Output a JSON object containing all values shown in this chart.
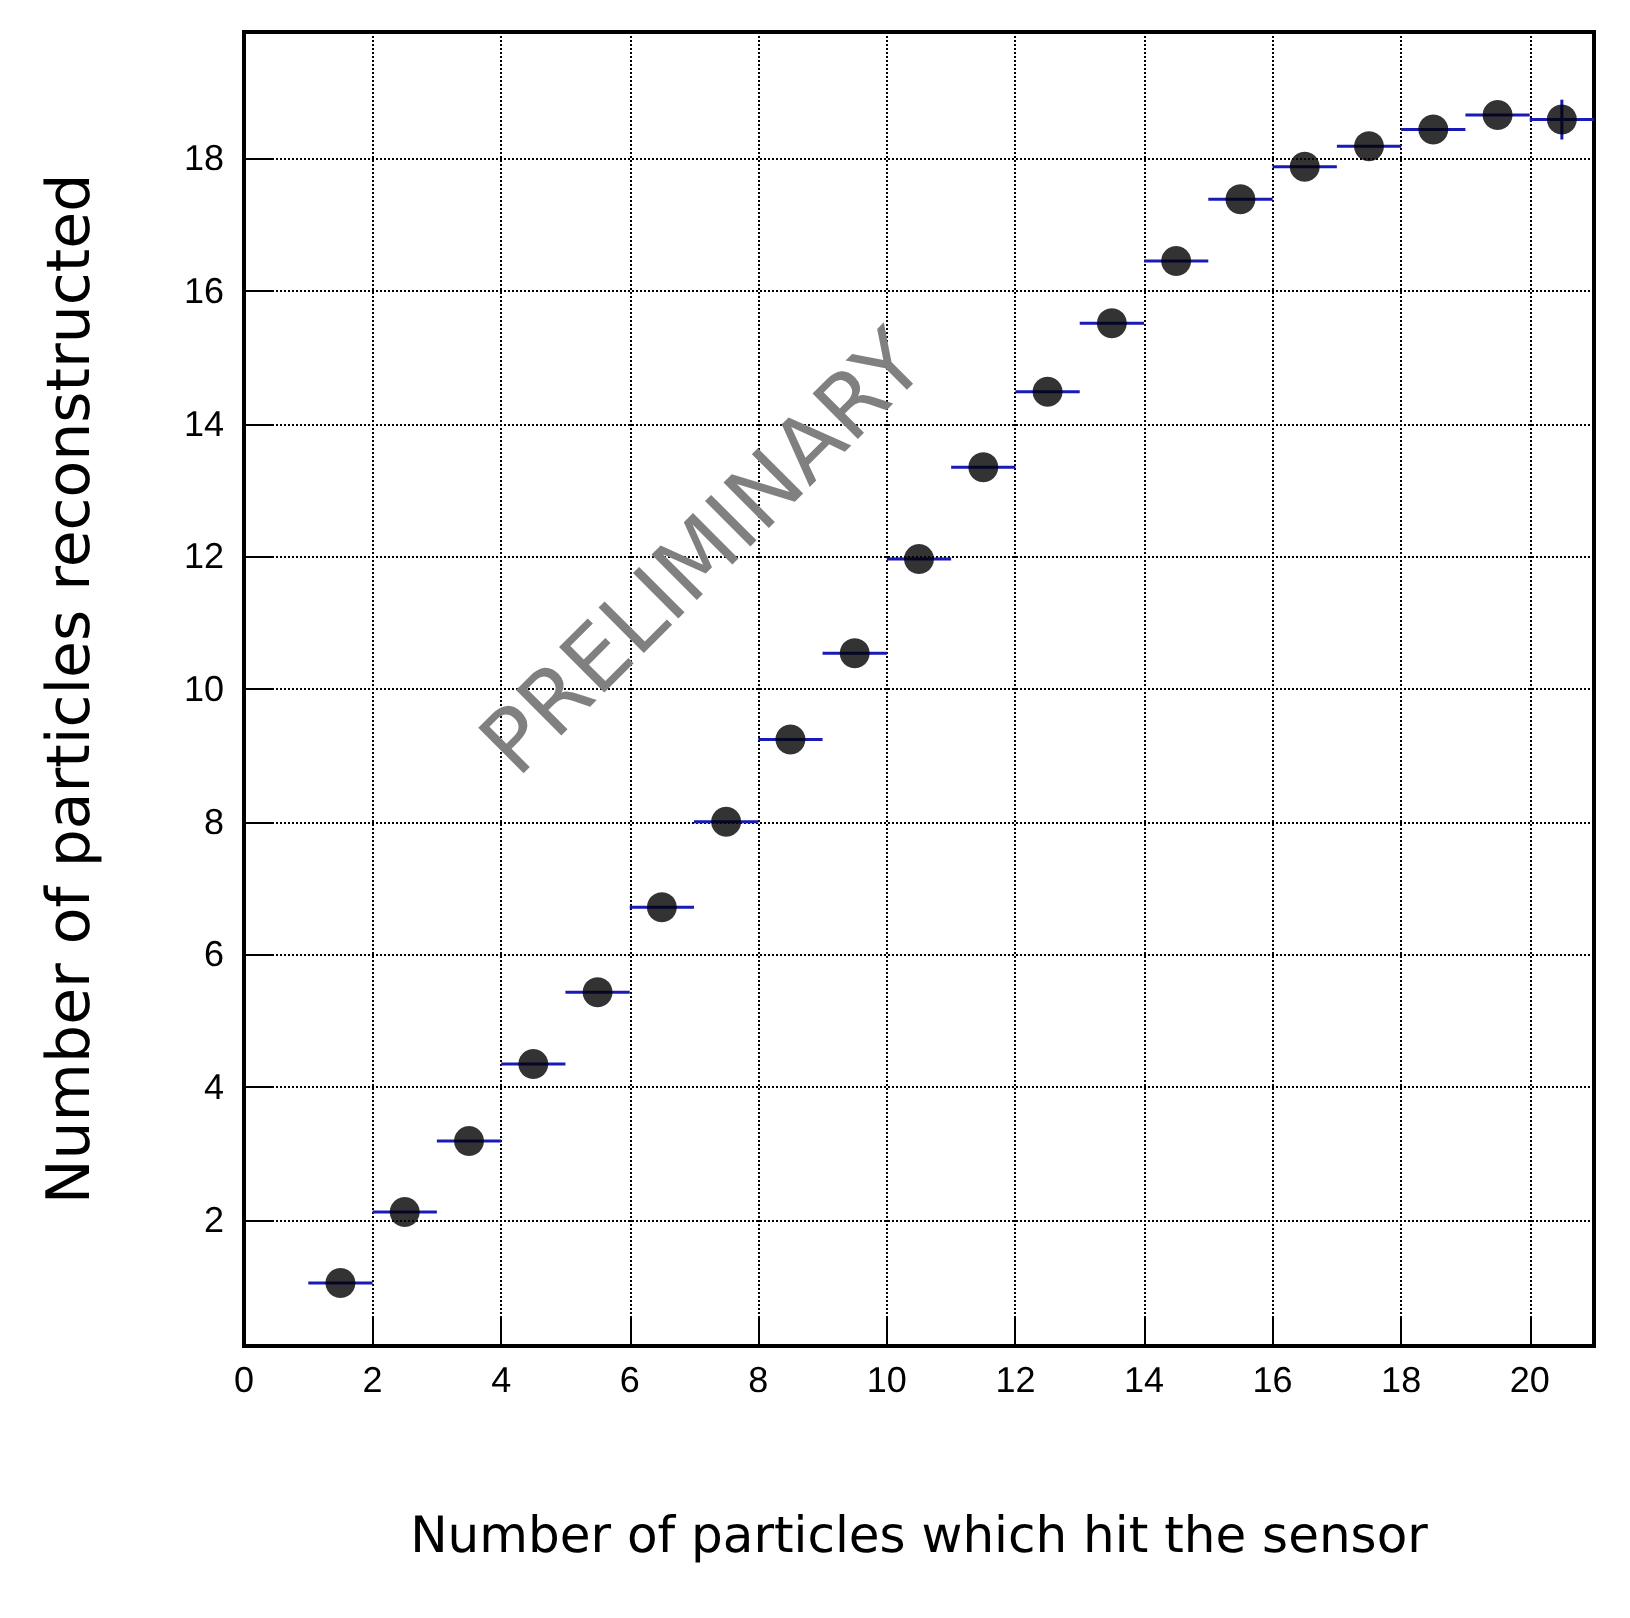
{
  "chart_data": {
    "type": "scatter",
    "xlabel": "Number of particles which hit the sensor",
    "ylabel": "Number of particles reconstructed",
    "annotations": [
      "PRELIMINARY"
    ],
    "x": [
      1.5,
      2.5,
      3.5,
      4.5,
      5.5,
      6.5,
      7.5,
      8.5,
      9.5,
      10.5,
      11.5,
      12.5,
      13.5,
      14.5,
      15.5,
      16.5,
      17.5,
      18.5,
      19.5,
      20.5
    ],
    "series": [
      {
        "color": "#000000",
        "values": [
          1.05,
          2.12,
          3.19,
          4.35,
          5.43,
          6.71,
          8.0,
          9.24,
          10.54,
          11.96,
          13.34,
          14.48,
          15.51,
          16.45,
          17.38,
          17.87,
          18.18,
          18.43,
          18.65,
          18.58
        ],
        "xerrors": [
          0.5,
          0.5,
          0.5,
          0.5,
          0.5,
          0.5,
          0.5,
          0.5,
          0.5,
          0.5,
          0.5,
          0.5,
          0.5,
          0.5,
          0.5,
          0.5,
          0.5,
          0.5,
          0.5,
          0.5
        ],
        "errors": [
          null,
          null,
          null,
          null,
          null,
          null,
          null,
          null,
          null,
          null,
          null,
          null,
          null,
          null,
          null,
          null,
          null,
          null,
          null,
          0.3
        ]
      }
    ],
    "xlim": [
      0,
      21
    ],
    "ylim": [
      0.1,
      19.9
    ],
    "xticks": [
      0,
      2,
      4,
      6,
      8,
      10,
      12,
      14,
      16,
      18,
      20
    ],
    "yticks": [
      2,
      4,
      6,
      8,
      10,
      12,
      14,
      16,
      18
    ],
    "grid": true,
    "marker": "circle"
  }
}
